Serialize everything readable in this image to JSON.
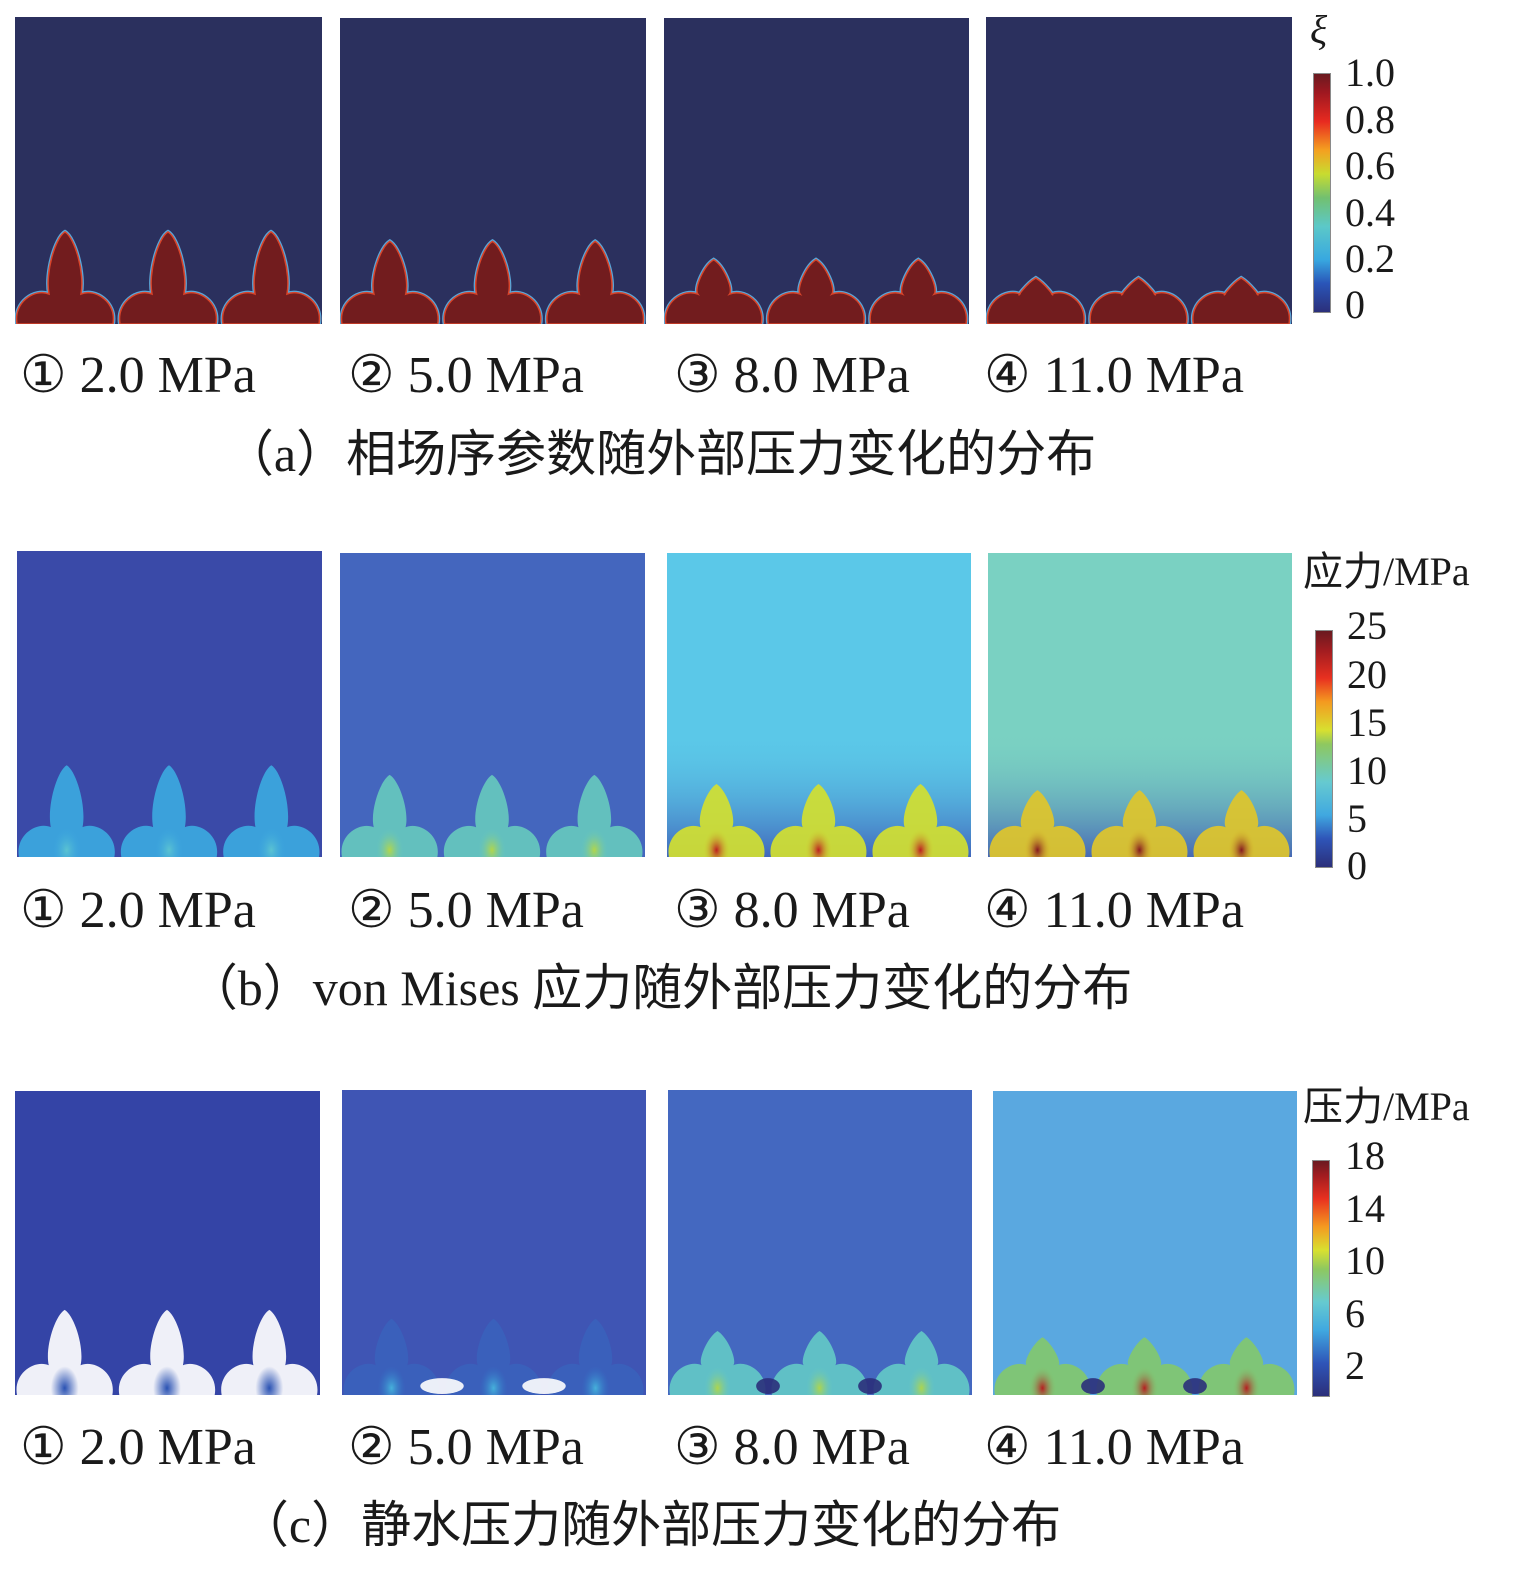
{
  "chart_data": [
    {
      "type": "heatmap",
      "title": "",
      "caption": "（a）相场序参数随外部压力变化的分布",
      "field": "phase-field order parameter",
      "colorbar": {
        "title": "ξ",
        "ticks": [
          "1.0",
          "0.8",
          "0.6",
          "0.4",
          "0.2",
          "0"
        ],
        "range": [
          0,
          1.0
        ]
      },
      "panels": [
        {
          "label": "① 2.0 MPa",
          "pressure_mpa": 2.0,
          "background_value": 0,
          "fracture_value": 1.0,
          "crack_height": 0.3,
          "wing_height": 0.3,
          "crack_count": 3
        },
        {
          "label": "② 5.0 MPa",
          "pressure_mpa": 5.0,
          "background_value": 0,
          "fracture_value": 1.0,
          "crack_height": 0.27,
          "wing_height": 0.3,
          "crack_count": 3
        },
        {
          "label": "③ 8.0 MPa",
          "pressure_mpa": 8.0,
          "background_value": 0,
          "fracture_value": 1.0,
          "crack_height": 0.21,
          "wing_height": 0.3,
          "crack_count": 3
        },
        {
          "label": "④ 11.0 MPa",
          "pressure_mpa": 11.0,
          "background_value": 0,
          "fracture_value": 1.0,
          "crack_height": 0.15,
          "wing_height": 0.3,
          "crack_count": 3
        }
      ],
      "colors": {
        "low": "#2b305e",
        "high": "#721c1e"
      }
    },
    {
      "type": "heatmap",
      "title": "",
      "caption": "（b）von Mises 应力随外部压力变化的分布",
      "field": "von Mises stress",
      "colorbar": {
        "title": "应力/MPa",
        "ticks": [
          "25",
          "20",
          "15",
          "10",
          "5",
          "0"
        ],
        "range": [
          0,
          25
        ]
      },
      "panels": [
        {
          "label": "① 2.0 MPa",
          "pressure_mpa": 2.0,
          "background_value": 2,
          "crack_value": 6,
          "peak_value": 9
        },
        {
          "label": "② 5.0 MPa",
          "pressure_mpa": 5.0,
          "background_value": 3,
          "crack_value": 10,
          "peak_value": 14
        },
        {
          "label": "③ 8.0 MPa",
          "pressure_mpa": 8.0,
          "background_value": 8,
          "crack_value": 15,
          "peak_value": 22
        },
        {
          "label": "④ 11.0 MPa",
          "pressure_mpa": 11.0,
          "background_value": 11,
          "crack_value": 16,
          "peak_value": 24
        }
      ],
      "colors": {
        "p1": "#3a4aa8",
        "p2": "#4466be",
        "p3": "#5bc8e8",
        "p4": "#7ad1c2"
      }
    },
    {
      "type": "heatmap",
      "title": "",
      "caption": "（c）静水压力随外部压力变化的分布",
      "field": "hydrostatic pressure",
      "colorbar": {
        "title": "压力/MPa",
        "ticks": [
          "18",
          "14",
          "10",
          "6",
          "2"
        ],
        "range": [
          0,
          18
        ]
      },
      "panels": [
        {
          "label": "① 2.0 MPa",
          "pressure_mpa": 2.0,
          "background_value": 1,
          "crack_value": "out of range",
          "peak_value": 2
        },
        {
          "label": "② 5.0 MPa",
          "pressure_mpa": 5.0,
          "background_value": 2,
          "crack_value": 3,
          "peak_value": 5
        },
        {
          "label": "③ 8.0 MPa",
          "pressure_mpa": 8.0,
          "background_value": 3,
          "crack_value": 7,
          "peak_value": 10
        },
        {
          "label": "④ 11.0 MPa",
          "pressure_mpa": 11.0,
          "background_value": 5,
          "crack_value": 9,
          "peak_value": 16
        }
      ],
      "colors": {
        "p1": "#3444a6",
        "p2": "#3f55b4",
        "p3": "#4468c0",
        "p4": "#5aa8e0"
      }
    }
  ]
}
